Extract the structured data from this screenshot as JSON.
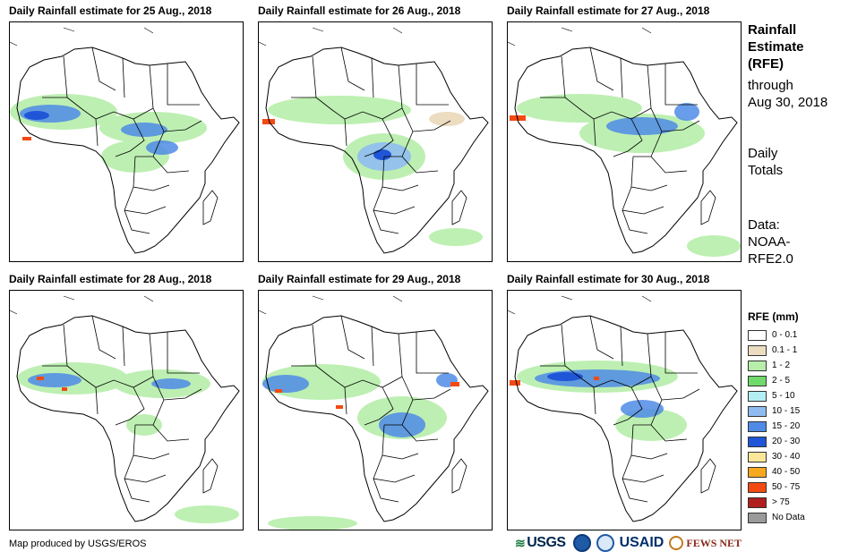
{
  "panels": [
    {
      "title": "Daily Rainfall estimate for 25 Aug., 2018"
    },
    {
      "title": "Daily Rainfall estimate for 26 Aug., 2018"
    },
    {
      "title": "Daily Rainfall estimate for 27 Aug., 2018"
    },
    {
      "title": "Daily Rainfall estimate for 28 Aug., 2018"
    },
    {
      "title": "Daily Rainfall estimate for 29 Aug., 2018"
    },
    {
      "title": "Daily Rainfall estimate for 30 Aug., 2018"
    }
  ],
  "sidebar": {
    "title_line1": "Rainfall",
    "title_line2": "Estimate",
    "title_line3": "(RFE)",
    "through_label": "through",
    "through_date": "Aug 30, 2018",
    "totals_line1": "Daily",
    "totals_line2": "Totals",
    "source_line1": "Data:",
    "source_line2": "NOAA-",
    "source_line3": "RFE2.0"
  },
  "legend": {
    "title": "RFE (mm)",
    "items": [
      {
        "label": "0 - 0.1",
        "color": "#ffffff"
      },
      {
        "label": "0.1 - 1",
        "color": "#ecdcc0"
      },
      {
        "label": "1 - 2",
        "color": "#b6eeaa"
      },
      {
        "label": "2 - 5",
        "color": "#6fd96a"
      },
      {
        "label": "5 - 10",
        "color": "#b4eef3"
      },
      {
        "label": "10 - 15",
        "color": "#8fbcf0"
      },
      {
        "label": "15 - 20",
        "color": "#4f8be6"
      },
      {
        "label": "20 - 30",
        "color": "#1f55d6"
      },
      {
        "label": "30 - 40",
        "color": "#fbe79a"
      },
      {
        "label": "40 - 50",
        "color": "#f6a81f"
      },
      {
        "label": "50 - 75",
        "color": "#f24a12"
      },
      {
        "label": "> 75",
        "color": "#b01e1e"
      },
      {
        "label": "No Data",
        "color": "#9a9a9a"
      }
    ]
  },
  "footer": {
    "credit": "Map produced by USGS/EROS",
    "logo_usgs": "USGS",
    "logo_usaid": "USAID",
    "logo_fews": "FEWS NET"
  }
}
